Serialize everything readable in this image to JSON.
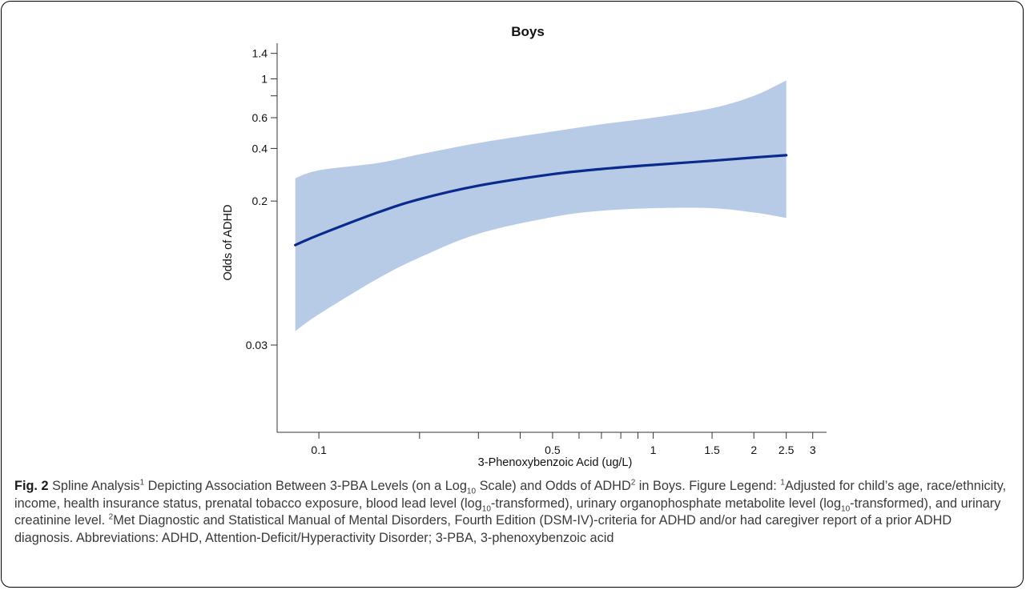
{
  "chart_data": {
    "type": "line",
    "title": "Boys",
    "xlabel": "3-Phenoxybenzoic Acid (ug/L)",
    "ylabel": "Odds of ADHD",
    "x_scale": "log",
    "y_scale": "log",
    "xlim": [
      0.075,
      3.3
    ],
    "ylim": [
      0.0095,
      1.6
    ],
    "x_ticks": [
      0.1,
      0.2,
      0.3,
      0.4,
      0.5,
      0.6,
      0.7,
      0.8,
      0.9,
      1,
      1.5,
      2,
      2.5,
      3
    ],
    "x_tick_labels": [
      "0.1",
      "",
      "",
      "",
      "0.5",
      "",
      "",
      "",
      "",
      "1",
      "1.5",
      "2",
      "2.5",
      "3"
    ],
    "y_ticks": [
      0.03,
      0.2,
      0.4,
      0.6,
      0.8,
      1,
      1.4
    ],
    "y_tick_labels": [
      "0.03",
      "0.2",
      "0.4",
      "0.6",
      "",
      "1",
      "1.4"
    ],
    "grid": false,
    "series": [
      {
        "x": [
          0.085,
          0.1,
          0.15,
          0.2,
          0.3,
          0.5,
          0.7,
          1,
          1.5,
          2,
          2.5
        ],
        "estimate": [
          0.112,
          0.128,
          0.172,
          0.205,
          0.245,
          0.285,
          0.305,
          0.322,
          0.34,
          0.355,
          0.366
        ],
        "lower": [
          0.036,
          0.045,
          0.072,
          0.095,
          0.13,
          0.162,
          0.176,
          0.182,
          0.182,
          0.172,
          0.16
        ],
        "upper": [
          0.27,
          0.3,
          0.33,
          0.37,
          0.43,
          0.5,
          0.55,
          0.6,
          0.68,
          0.8,
          0.98
        ]
      }
    ],
    "colors": {
      "line": "#0a2b8c",
      "band": "#b7cbe6",
      "axis": "#333333"
    }
  },
  "caption": {
    "fig_label": "Fig. 2",
    "title_part1": "Spline Analysis",
    "sup1": "1",
    "title_part2": "Depicting Association Between 3-PBA Levels (on a Log",
    "sub10a": "10",
    "title_part3": "Scale) and Odds of ADHD",
    "sup2": "2",
    "title_part4": "in Boys. Figure Legend:",
    "sup1b": "1",
    "legend_part1": "Adjusted for child’s age, race/ethnicity, income, health insurance status, prenatal tobacco exposure, blood lead level (log",
    "sub10b": "10",
    "legend_part2": "-transformed), urinary organophosphate metabolite level (log",
    "sub10c": "10",
    "legend_part3": "-transformed), and urinary creatinine level.",
    "sup2b": "2",
    "legend_part4": "Met Diagnostic and Statistical Manual of Mental Disorders, Fourth Edition (DSM-IV)-criteria for ADHD and/or had caregiver report of a prior ADHD diagnosis. Abbreviations: ADHD, Attention-Deficit/Hyperactivity Disorder; 3-PBA, 3-phenoxybenzoic acid"
  }
}
